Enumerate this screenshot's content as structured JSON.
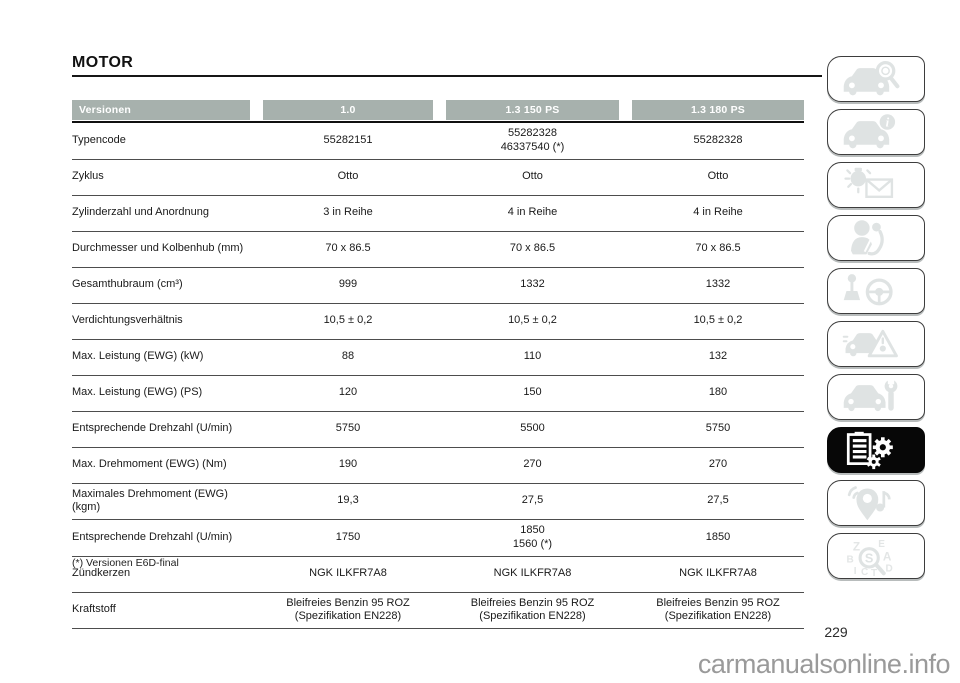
{
  "page": {
    "title": "MOTOR",
    "page_number": "229",
    "watermark": "carmanualsonline.info",
    "footnote": "(*) Versionen E6D-final"
  },
  "table": {
    "headers": [
      "Versionen",
      "1.0",
      "1.3 150 PS",
      "1.3 180 PS"
    ],
    "rows": [
      {
        "label": "Typencode",
        "values": [
          "55282151",
          "55282328\n46337540 (*)",
          "55282328"
        ]
      },
      {
        "label": "Zyklus",
        "values": [
          "Otto",
          "Otto",
          "Otto"
        ]
      },
      {
        "label": "Zylinderzahl und Anordnung",
        "values": [
          "3 in Reihe",
          "4 in Reihe",
          "4 in Reihe"
        ]
      },
      {
        "label": "Durchmesser und Kolbenhub (mm)",
        "values": [
          "70 x 86.5",
          "70 x 86.5",
          "70 x 86.5"
        ]
      },
      {
        "label": "Gesamthubraum (cm³)",
        "values": [
          "999",
          "1332",
          "1332"
        ]
      },
      {
        "label": "Verdichtungsverhältnis",
        "values": [
          "10,5 ± 0,2",
          "10,5 ± 0,2",
          "10,5 ± 0,2"
        ]
      },
      {
        "label": "Max. Leistung (EWG) (kW)",
        "values": [
          "88",
          "110",
          "132"
        ]
      },
      {
        "label": "Max. Leistung (EWG) (PS)",
        "values": [
          "120",
          "150",
          "180"
        ]
      },
      {
        "label": "Entsprechende Drehzahl (U/min)",
        "values": [
          "5750",
          "5500",
          "5750"
        ]
      },
      {
        "label": "Max. Drehmoment (EWG) (Nm)",
        "values": [
          "190",
          "270",
          "270"
        ]
      },
      {
        "label": "Maximales Drehmoment (EWG)\n(kgm)",
        "values": [
          "19,3",
          "27,5",
          "27,5"
        ]
      },
      {
        "label": "Entsprechende Drehzahl (U/min)",
        "values": [
          "1750",
          "1850\n1560 (*)",
          "1850"
        ]
      },
      {
        "label": "Zündkerzen",
        "values": [
          "NGK ILKFR7A8",
          "NGK ILKFR7A8",
          "NGK ILKFR7A8"
        ]
      },
      {
        "label": "Kraftstoff",
        "values": [
          "Bleifreies Benzin 95 ROZ\n(Spezifikation EN228)",
          "Bleifreies Benzin 95 ROZ\n(Spezifikation EN228)",
          "Bleifreies Benzin 95 ROZ\n(Spezifikation EN228)"
        ]
      }
    ]
  },
  "sidebar": {
    "tabs": [
      {
        "icon": "car-search-icon",
        "active": false
      },
      {
        "icon": "car-info-icon",
        "active": false
      },
      {
        "icon": "warning-light-envelope-icon",
        "active": false
      },
      {
        "icon": "child-safety-icon",
        "active": false
      },
      {
        "icon": "gearshift-steering-wheel-icon",
        "active": false
      },
      {
        "icon": "car-warning-triangle-icon",
        "active": false
      },
      {
        "icon": "car-wrench-icon",
        "active": false
      },
      {
        "icon": "technical-data-icon",
        "active": true
      },
      {
        "icon": "multimedia-location-icon",
        "active": false
      },
      {
        "icon": "alphabetical-index-icon",
        "active": false
      }
    ]
  },
  "colors": {
    "header_bg": "#a7b1ad",
    "header_text": "#ffffff",
    "active_tab_bg": "#070707",
    "icon_gray": "#dfe3e3",
    "watermark_gray": "#9a9a9a"
  }
}
